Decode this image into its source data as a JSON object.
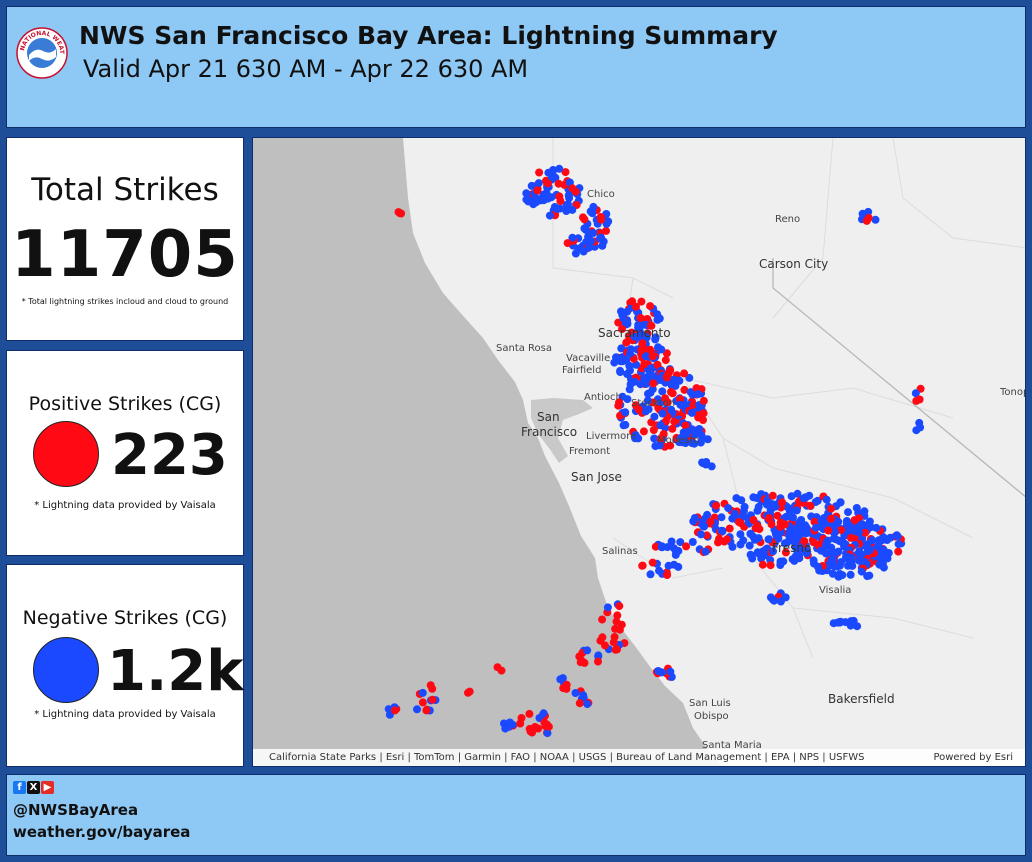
{
  "header": {
    "logo_text": "NATIONAL WEATHER SERVICE",
    "title": "NWS San Francisco Bay Area:  Lightning Summary",
    "subtitle": "Valid Apr 21 630 AM - Apr 22 630 AM"
  },
  "total": {
    "title": "Total Strikes",
    "value": "11705",
    "note": "* Total lightning strikes incloud and cloud to ground"
  },
  "positive": {
    "title": "Positive Strikes (CG)",
    "value": "223",
    "note": "* Lightning data provided by Vaisala",
    "color": "#ff0a14"
  },
  "negative": {
    "title": "Negative Strikes (CG)",
    "value": "1.2k",
    "note": "* Lightning data provided by Vaisala",
    "color": "#1a49ff"
  },
  "map": {
    "places": {
      "chico": "Chico",
      "reno": "Reno",
      "carson_city": "Carson City",
      "sacramento": "Sacramento",
      "santa_rosa": "Santa Rosa",
      "vacaville": "Vacaville",
      "fairfield": "Fairfield",
      "antioch": "Antioch",
      "stockton": "Stockton",
      "san": "San",
      "francisco": "Francisco",
      "livermore": "Livermore",
      "modesto": "Modesto",
      "fremont": "Fremont",
      "san_jose": "San Jose",
      "salinas": "Salinas",
      "fresno": "Fresno",
      "visalia": "Visalia",
      "tono": "Tonop",
      "san_luis": "San Luis",
      "obispo": "Obispo",
      "bakersfield": "Bakersfield",
      "santa_maria": "Santa Maria"
    },
    "attribution": "California State Parks | Esri | TomTom | Garmin | FAO | NOAA | USGS | Bureau of Land Management | EPA | NPS | USFWS",
    "powered_by": "Powered by Esri"
  },
  "footer": {
    "social_icons": [
      "facebook-icon",
      "x-icon",
      "youtube-icon"
    ],
    "handle": "@NWSBayArea",
    "website": "weather.gov/bayarea"
  }
}
